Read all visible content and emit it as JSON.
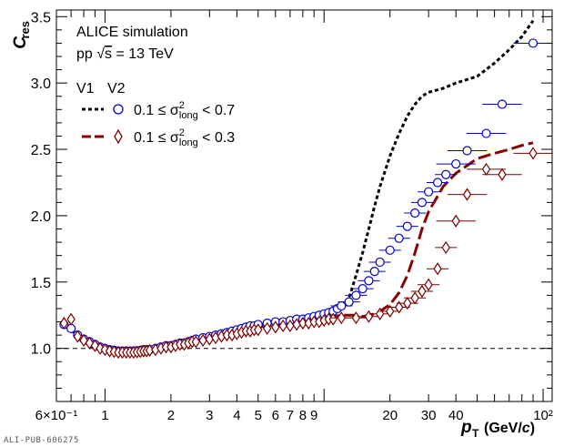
{
  "chart_data": {
    "type": "scatter",
    "ylabel_main": "C",
    "ylabel_sub": "res",
    "xlabel_main": "p",
    "xlabel_sub": "T",
    "xlabel_unit_pre": "(GeV/",
    "xlabel_unit_c": "c",
    "xlabel_unit_post": ")",
    "x_scale": "log",
    "xlim": [
      0.6,
      110
    ],
    "ylim": [
      0.6,
      3.55
    ],
    "x_ticks": [
      {
        "v": 0.6,
        "label": "6×10⁻¹"
      },
      {
        "v": 1,
        "label": "1"
      },
      {
        "v": 2,
        "label": "2"
      },
      {
        "v": 3,
        "label": "3"
      },
      {
        "v": 4,
        "label": "4"
      },
      {
        "v": 5,
        "label": "5"
      },
      {
        "v": 6,
        "label": "6"
      },
      {
        "v": 7,
        "label": "7"
      },
      {
        "v": 8,
        "label": "8"
      },
      {
        "v": 9,
        "label": "9"
      },
      {
        "v": 20,
        "label": "20"
      },
      {
        "v": 30,
        "label": "30"
      },
      {
        "v": 40,
        "label": "40"
      },
      {
        "v": 100,
        "label": "10²"
      }
    ],
    "y_ticks": [
      {
        "v": 1.0,
        "label": "1.0"
      },
      {
        "v": 1.5,
        "label": "1.5"
      },
      {
        "v": 2.0,
        "label": "2.0"
      },
      {
        "v": 2.5,
        "label": "2.5"
      },
      {
        "v": 3.0,
        "label": "3.0"
      },
      {
        "v": 3.5,
        "label": "3.5"
      }
    ],
    "reference_line_y": 1.0,
    "annotation": {
      "line1": "ALICE simulation",
      "line2_pre": "pp  ",
      "line2_sqrt": "√",
      "line2_s": "s",
      "line2_post": " = 13 TeV"
    },
    "legend": {
      "header_v1": "V1",
      "header_v2": "V2",
      "entry1_pre": "0.1 ≤ σ",
      "entry1_sup": "2",
      "entry1_sub": "long",
      "entry1_post": " < 0.7",
      "entry2_pre": "0.1 ≤ σ",
      "entry2_sup": "2",
      "entry2_sub": "long",
      "entry2_post": " < 0.3"
    },
    "series": [
      {
        "key": "v1_wide",
        "kind": "line",
        "style": "dotted",
        "color": "#000000",
        "x": [
          0.65,
          0.7,
          0.75,
          0.8,
          0.9,
          1.0,
          1.1,
          1.2,
          1.35,
          1.5,
          1.7,
          2.0,
          2.5,
          3.0,
          3.5,
          4.0,
          5.0,
          6.0,
          7.0,
          8.0,
          9.0,
          10,
          11,
          12,
          13,
          14,
          15,
          16,
          17,
          18,
          20,
          22,
          24,
          26,
          28,
          30,
          35,
          40,
          50,
          60,
          70,
          80,
          90
        ],
        "y": [
          1.19,
          1.14,
          1.1,
          1.06,
          1.02,
          0.99,
          0.98,
          0.98,
          0.985,
          0.99,
          1.0,
          1.02,
          1.06,
          1.09,
          1.12,
          1.15,
          1.18,
          1.2,
          1.23,
          1.21,
          1.23,
          1.25,
          1.27,
          1.3,
          1.38,
          1.55,
          1.72,
          1.9,
          2.07,
          2.22,
          2.45,
          2.62,
          2.75,
          2.84,
          2.9,
          2.93,
          2.96,
          3.0,
          3.05,
          3.15,
          3.25,
          3.35,
          3.47
        ]
      },
      {
        "key": "v1_narrow",
        "kind": "line",
        "style": "dashed",
        "color": "#8b0000",
        "x": [
          0.65,
          0.7,
          0.75,
          0.8,
          0.9,
          1.0,
          1.1,
          1.2,
          1.35,
          1.5,
          1.7,
          2.0,
          2.5,
          3.0,
          3.5,
          4.0,
          5.0,
          6.0,
          7.0,
          8.0,
          9.0,
          10,
          11,
          12,
          13,
          14,
          15,
          16,
          17,
          18,
          20,
          22,
          24,
          26,
          28,
          30,
          35,
          40,
          50,
          60,
          70,
          80,
          90
        ],
        "y": [
          1.19,
          1.13,
          1.09,
          1.05,
          1.0,
          0.98,
          0.97,
          0.97,
          0.975,
          0.98,
          0.99,
          1.01,
          1.05,
          1.08,
          1.1,
          1.13,
          1.16,
          1.18,
          1.2,
          1.19,
          1.21,
          1.23,
          1.24,
          1.25,
          1.25,
          1.25,
          1.24,
          1.25,
          1.26,
          1.28,
          1.33,
          1.42,
          1.55,
          1.72,
          1.9,
          2.03,
          2.22,
          2.32,
          2.43,
          2.47,
          2.5,
          2.53,
          2.55
        ]
      },
      {
        "key": "v2_wide",
        "kind": "points",
        "marker": "circle",
        "color": "#0000cc",
        "x": [
          0.65,
          0.7,
          0.75,
          0.8,
          0.85,
          0.9,
          0.95,
          1.0,
          1.05,
          1.1,
          1.15,
          1.2,
          1.25,
          1.3,
          1.35,
          1.4,
          1.45,
          1.5,
          1.55,
          1.6,
          1.7,
          1.8,
          1.9,
          2.0,
          2.1,
          2.2,
          2.3,
          2.4,
          2.5,
          2.6,
          2.8,
          3.0,
          3.2,
          3.4,
          3.6,
          3.8,
          4.0,
          4.2,
          4.4,
          4.6,
          4.8,
          5.0,
          5.5,
          6.0,
          6.5,
          7.0,
          7.5,
          8.0,
          8.5,
          9.0,
          9.5,
          10.0,
          10.5,
          11.0,
          11.5,
          12.0,
          13.0,
          14.0,
          15.0,
          16.0,
          17.0,
          18.0,
          20.0,
          22.0,
          24.0,
          26.0,
          28.0,
          30.0,
          33.0,
          36.0,
          40.0,
          45.0,
          55.0,
          65.0,
          90.0
        ],
        "y": [
          1.18,
          1.15,
          1.1,
          1.07,
          1.05,
          1.03,
          1.01,
          1.0,
          0.99,
          0.985,
          0.98,
          0.98,
          0.98,
          0.98,
          0.98,
          0.982,
          0.985,
          0.99,
          0.99,
          0.99,
          1.0,
          1.01,
          1.02,
          1.02,
          1.03,
          1.04,
          1.04,
          1.05,
          1.06,
          1.07,
          1.08,
          1.09,
          1.1,
          1.11,
          1.12,
          1.13,
          1.14,
          1.15,
          1.16,
          1.17,
          1.17,
          1.18,
          1.19,
          1.2,
          1.2,
          1.21,
          1.22,
          1.22,
          1.23,
          1.24,
          1.25,
          1.26,
          1.27,
          1.28,
          1.3,
          1.32,
          1.35,
          1.4,
          1.45,
          1.51,
          1.58,
          1.65,
          1.74,
          1.83,
          1.92,
          2.02,
          2.1,
          2.18,
          2.25,
          2.31,
          2.39,
          2.49,
          2.62,
          2.84,
          3.3
        ]
      },
      {
        "key": "v2_narrow",
        "kind": "points",
        "marker": "diamond",
        "color": "#7a0000",
        "x": [
          0.65,
          0.7,
          0.75,
          0.8,
          0.85,
          0.9,
          0.95,
          1.0,
          1.05,
          1.1,
          1.15,
          1.2,
          1.25,
          1.3,
          1.35,
          1.4,
          1.45,
          1.5,
          1.55,
          1.6,
          1.7,
          1.8,
          1.9,
          2.0,
          2.1,
          2.2,
          2.3,
          2.4,
          2.5,
          2.6,
          2.8,
          3.0,
          3.2,
          3.4,
          3.6,
          3.8,
          4.0,
          4.2,
          4.4,
          4.6,
          4.8,
          5.0,
          5.5,
          6.0,
          6.5,
          7.0,
          7.5,
          8.0,
          8.5,
          9.0,
          9.5,
          10.0,
          10.5,
          11.0,
          12.0,
          14.0,
          16.0,
          18.0,
          20.0,
          22.0,
          24.0,
          26.0,
          28.0,
          30.0,
          33.0,
          36.0,
          40.0,
          45.0,
          55.0,
          65.0,
          90.0
        ],
        "y": [
          1.19,
          1.22,
          1.09,
          1.06,
          1.04,
          1.02,
          1.0,
          0.99,
          0.98,
          0.975,
          0.97,
          0.97,
          0.97,
          0.97,
          0.97,
          0.972,
          0.975,
          0.98,
          0.98,
          0.985,
          0.99,
          1.0,
          1.01,
          1.01,
          1.02,
          1.03,
          1.03,
          1.04,
          1.05,
          1.05,
          1.06,
          1.07,
          1.08,
          1.09,
          1.1,
          1.1,
          1.11,
          1.12,
          1.13,
          1.13,
          1.14,
          1.14,
          1.15,
          1.16,
          1.17,
          1.17,
          1.18,
          1.19,
          1.19,
          1.2,
          1.2,
          1.21,
          1.22,
          1.22,
          1.23,
          1.23,
          1.24,
          1.26,
          1.28,
          1.31,
          1.34,
          1.38,
          1.43,
          1.48,
          1.6,
          1.76,
          1.96,
          2.16,
          2.35,
          2.31,
          2.47
        ]
      }
    ]
  },
  "footer": {
    "pub_id": "ALI-PUB-606275"
  }
}
